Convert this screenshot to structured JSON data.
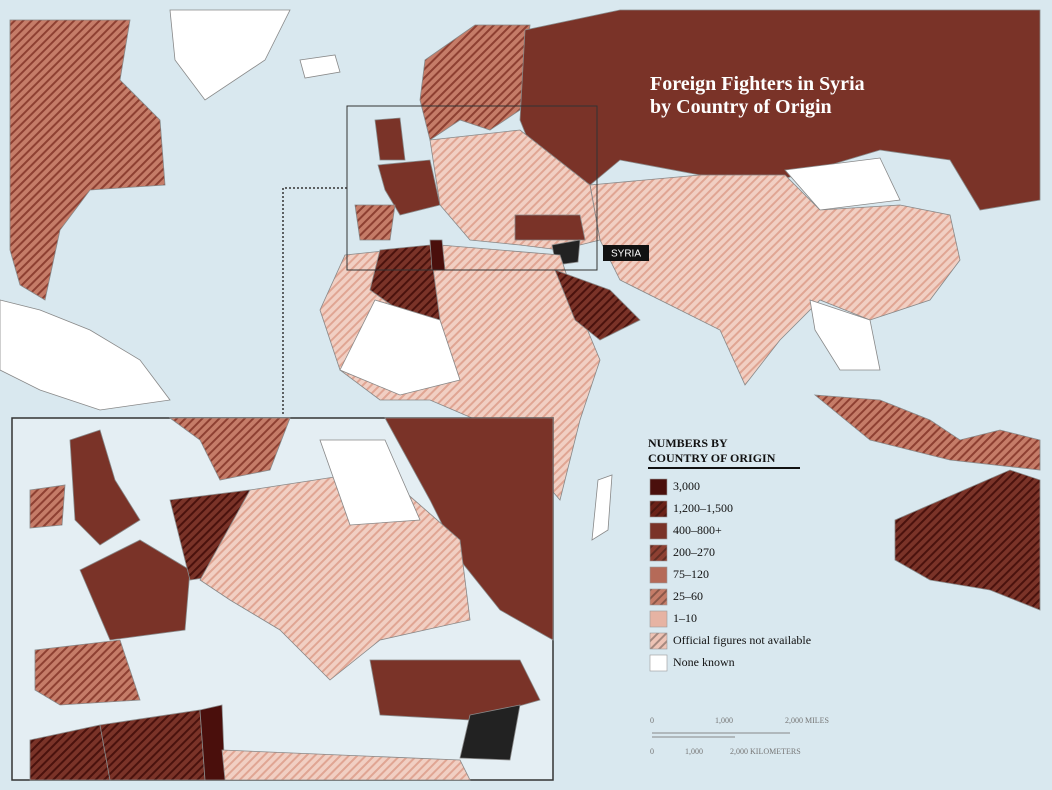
{
  "title": [
    "Foreign Fighters in Syria",
    "by Country of Origin"
  ],
  "syria_label": "SYRIA",
  "legend": {
    "title": [
      "NUMBERS BY",
      "COUNTRY OF ORIGIN"
    ],
    "items": [
      {
        "label": "3,000",
        "color": "#4a0f0c",
        "hatched": false
      },
      {
        "label": "1,200–1,500",
        "color": "#6b2218",
        "hatched": true
      },
      {
        "label": "400–800+",
        "color": "#7a3328",
        "hatched": false
      },
      {
        "label": "200–270",
        "color": "#8e4032",
        "hatched": true
      },
      {
        "label": "75–120",
        "color": "#b56a58",
        "hatched": false
      },
      {
        "label": "25–60",
        "color": "#c57c68",
        "hatched": true
      },
      {
        "label": "1–10",
        "color": "#e6b3a3",
        "hatched": false
      },
      {
        "label": "Official figures not available",
        "color": "#eec3b5",
        "hatched": true
      },
      {
        "label": "None known",
        "color": "#ffffff",
        "hatched": false
      }
    ]
  },
  "scale": {
    "miles": [
      "0",
      "1,000",
      "2,000 MILES"
    ],
    "kilometers": [
      "0",
      "1,000",
      "2,000 KILOMETERS"
    ]
  }
}
